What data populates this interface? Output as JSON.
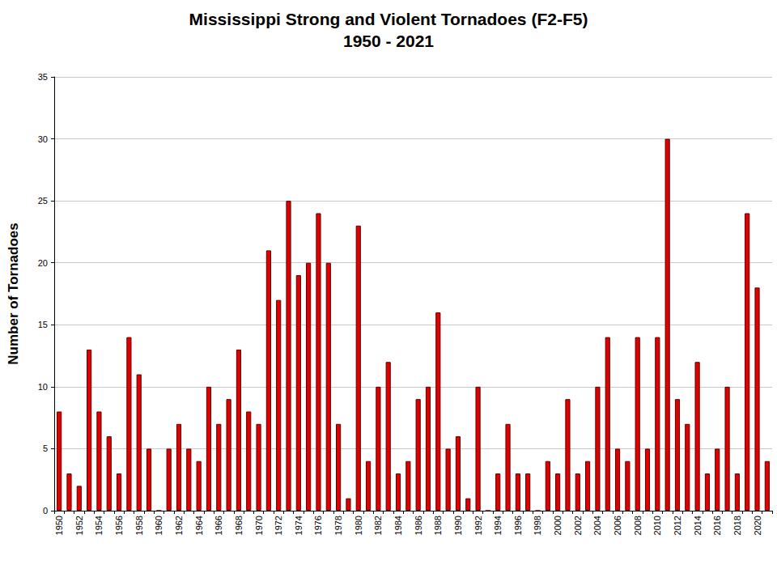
{
  "chart_data": {
    "type": "bar",
    "title": "Mississippi Strong and Violent Tornadoes (F2-F5)",
    "subtitle": "1950 - 2021",
    "y_label": "Number of Tornadoes",
    "categories": [
      "1950",
      null,
      "1952",
      null,
      "1954",
      null,
      "1956",
      null,
      "1958",
      null,
      "1960",
      null,
      "1962",
      null,
      "1964",
      null,
      "1966",
      null,
      "1968",
      null,
      "1970",
      null,
      "1972",
      null,
      "1974",
      null,
      "1976",
      null,
      "1978",
      null,
      "1980",
      null,
      "1982",
      null,
      "1984",
      null,
      "1986",
      null,
      "1988",
      null,
      "1990",
      null,
      "1992",
      null,
      "1994",
      null,
      "1996",
      null,
      "1998",
      null,
      "2000",
      null,
      "2002",
      null,
      "2004",
      null,
      "2006",
      null,
      "2008",
      null,
      "2010",
      null,
      "2012",
      null,
      "2014",
      null,
      "2016",
      null,
      "2018",
      null,
      "2020",
      null
    ],
    "values": [
      8,
      3,
      2,
      13,
      8,
      6,
      3,
      14,
      11,
      5,
      0,
      5,
      7,
      5,
      4,
      10,
      7,
      9,
      13,
      8,
      7,
      21,
      17,
      25,
      19,
      20,
      24,
      20,
      7,
      1,
      23,
      4,
      10,
      12,
      3,
      4,
      9,
      10,
      16,
      5,
      6,
      1,
      10,
      0,
      3,
      7,
      3,
      3,
      0,
      4,
      3,
      9,
      3,
      4,
      10,
      14,
      5,
      4,
      14,
      5,
      14,
      30,
      9,
      7,
      12,
      3,
      5,
      10,
      3,
      24,
      18,
      4
    ],
    "color": "#e00000",
    "ylim": [
      0,
      35
    ],
    "yticks": [
      0,
      5,
      10,
      15,
      20,
      25,
      30,
      35
    ],
    "grid": true
  }
}
